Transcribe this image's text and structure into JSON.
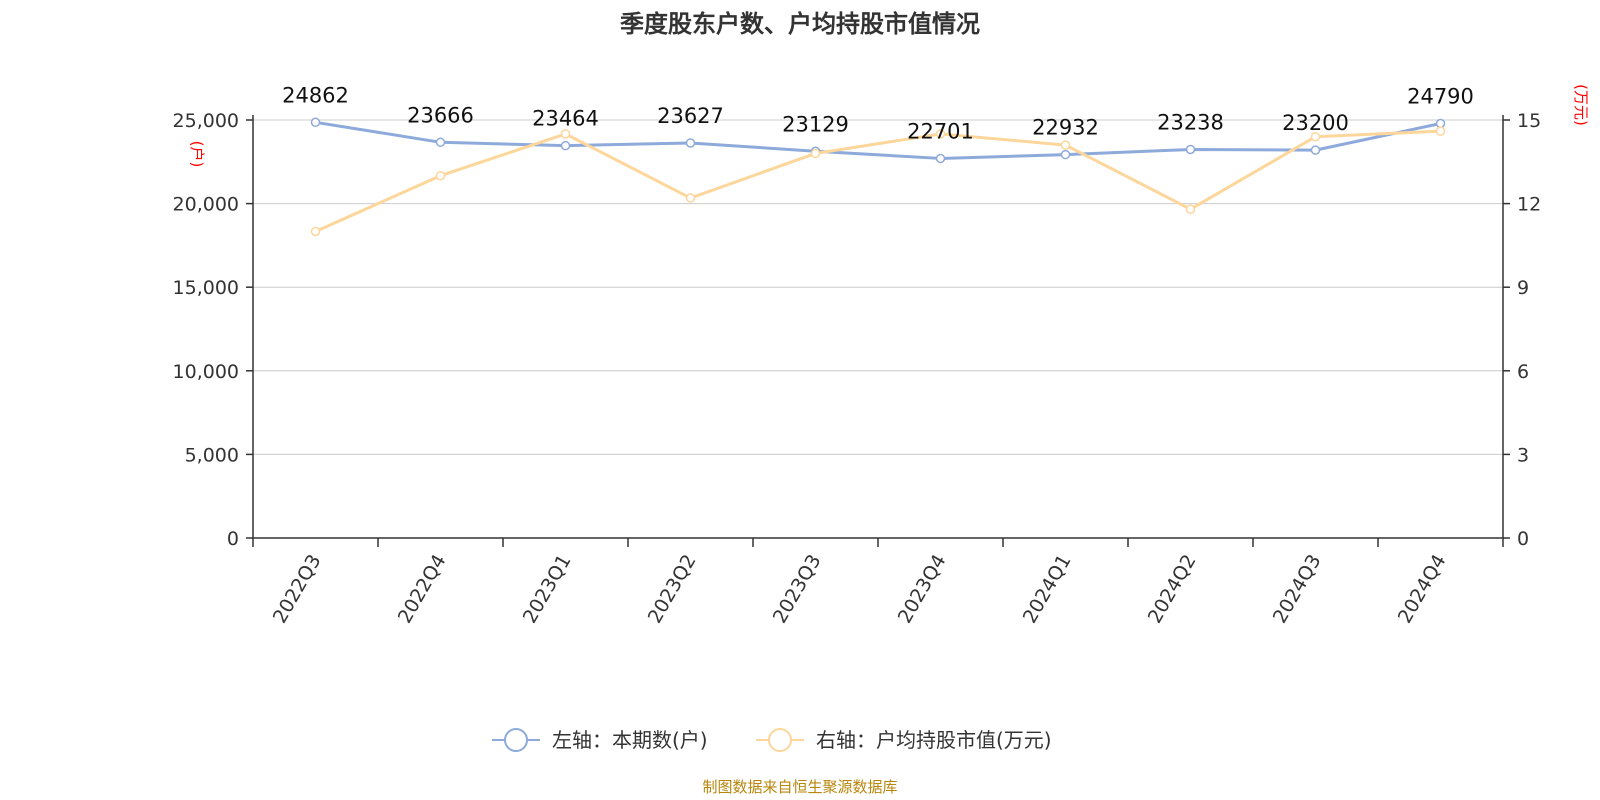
{
  "title": "季度股东户数、户均持股市值情况",
  "source": "制图数据来自恒生聚源数据库",
  "colors": {
    "series_left": "#8eaadb",
    "series_right": "#fcd69a",
    "axis": "#333333",
    "grid": "#cccccc",
    "unit": "#ff0000",
    "source": "#b8860b"
  },
  "chart_data": {
    "type": "line",
    "categories": [
      "2022Q3",
      "2022Q4",
      "2023Q1",
      "2023Q2",
      "2023Q3",
      "2023Q4",
      "2024Q1",
      "2024Q2",
      "2024Q3",
      "2024Q4"
    ],
    "series": [
      {
        "name": "左轴：本期数(户)",
        "axis": "left",
        "values": [
          24862,
          23666,
          23464,
          23627,
          23129,
          22701,
          22932,
          23238,
          23200,
          24790
        ],
        "labels": [
          "24862",
          "23666",
          "23464",
          "23627",
          "23129",
          "22701",
          "22932",
          "23238",
          "23200",
          "24790"
        ]
      },
      {
        "name": "右轴：户均持股市值(万元)",
        "axis": "right",
        "values": [
          11.0,
          13.0,
          14.5,
          12.2,
          13.8,
          14.5,
          14.1,
          11.8,
          14.4,
          14.6
        ]
      }
    ],
    "y_left": {
      "unit": "(户)",
      "ylim": [
        0,
        25000
      ],
      "ticks": [
        0,
        5000,
        10000,
        15000,
        20000,
        25000
      ],
      "tick_labels": [
        "0",
        "5,000",
        "10,000",
        "15,000",
        "20,000",
        "25,000"
      ]
    },
    "y_right": {
      "unit": "(万元)",
      "ylim": [
        0,
        15
      ],
      "ticks": [
        0,
        3,
        6,
        9,
        12,
        15
      ],
      "tick_labels": [
        "0",
        "3",
        "6",
        "9",
        "12",
        "15"
      ]
    },
    "grid": true,
    "legend_position": "bottom-center"
  }
}
